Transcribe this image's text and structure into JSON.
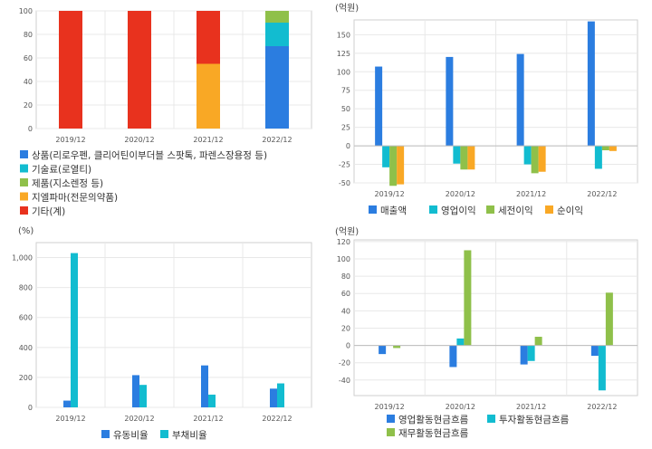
{
  "colors": {
    "blue": "#2b7de0",
    "cyan": "#12bcd0",
    "green": "#8fc04a",
    "orange": "#f9a825",
    "red": "#e8321e",
    "grid": "#e8e8e8",
    "frame": "#cfcfcf"
  },
  "chart_data": [
    {
      "id": "product-mix",
      "type": "bar",
      "stacked": true,
      "unit": "",
      "categories": [
        "2019/12",
        "2020/12",
        "2021/12",
        "2022/12"
      ],
      "ylim": [
        0,
        100
      ],
      "yticks": [
        "0",
        "20",
        "40",
        "60",
        "80",
        "100"
      ],
      "series": [
        {
          "name": "상품(리로우펜, 클리어틴이부더블 스팟톡, 파렌스장용정 등)",
          "color": "blue",
          "values": [
            0,
            0,
            0,
            70
          ]
        },
        {
          "name": "기술료(로열티)",
          "color": "cyan",
          "values": [
            0,
            0,
            0,
            20
          ]
        },
        {
          "name": "제품(지소렌정 등)",
          "color": "green",
          "values": [
            0,
            0,
            0,
            10
          ]
        },
        {
          "name": "지엘파마(전문의약품)",
          "color": "orange",
          "values": [
            0,
            0,
            55,
            0
          ]
        },
        {
          "name": "기타(계)",
          "color": "red",
          "values": [
            100,
            100,
            45,
            0
          ]
        }
      ]
    },
    {
      "id": "income",
      "type": "bar",
      "unit": "(억원)",
      "categories": [
        "2019/12",
        "2020/12",
        "2021/12",
        "2022/12"
      ],
      "ylim": [
        -50,
        170
      ],
      "yticks": [
        "-50",
        "-25",
        "0",
        "25",
        "50",
        "75",
        "100",
        "125",
        "150"
      ],
      "series": [
        {
          "name": "매출액",
          "color": "blue",
          "values": [
            107,
            120,
            124,
            168
          ]
        },
        {
          "name": "영업이익",
          "color": "cyan",
          "values": [
            -29,
            -24,
            -25,
            -31
          ]
        },
        {
          "name": "세전이익",
          "color": "green",
          "values": [
            -54,
            -32,
            -37,
            -6
          ]
        },
        {
          "name": "순이익",
          "color": "orange",
          "values": [
            -52,
            -32,
            -35,
            -7
          ]
        }
      ]
    },
    {
      "id": "ratios",
      "type": "bar",
      "unit": "(%)",
      "categories": [
        "2019/12",
        "2020/12",
        "2021/12",
        "2022/12"
      ],
      "ylim": [
        0,
        1100
      ],
      "yticks": [
        "0",
        "200",
        "400",
        "600",
        "800",
        "1,000"
      ],
      "series": [
        {
          "name": "유동비율",
          "color": "blue",
          "values": [
            45,
            215,
            280,
            125
          ]
        },
        {
          "name": "부채비율",
          "color": "cyan",
          "values": [
            1030,
            150,
            85,
            160
          ]
        }
      ]
    },
    {
      "id": "cashflow",
      "type": "bar",
      "unit": "(억원)",
      "categories": [
        "2019/12",
        "2020/12",
        "2021/12",
        "2022/12"
      ],
      "ylim": [
        -58,
        122
      ],
      "yticks": [
        "-40",
        "-20",
        "0",
        "20",
        "40",
        "60",
        "80",
        "100",
        "120"
      ],
      "series": [
        {
          "name": "영업활동현금흐름",
          "color": "blue",
          "values": [
            -10,
            -25,
            -22,
            -12
          ]
        },
        {
          "name": "투자활동현금흐름",
          "color": "cyan",
          "values": [
            0,
            8,
            -18,
            -52
          ]
        },
        {
          "name": "재무활동현금흐름",
          "color": "green",
          "values": [
            -3,
            110,
            10,
            61
          ]
        }
      ]
    }
  ]
}
